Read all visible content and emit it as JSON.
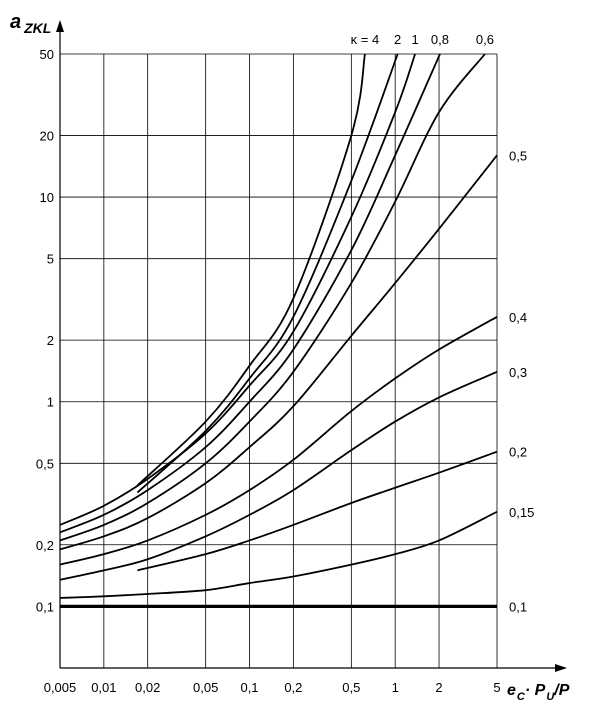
{
  "chart_data": {
    "type": "line",
    "y_label": {
      "main": "a",
      "sub": "ZKL"
    },
    "x_label": [
      "e",
      "C",
      "· P",
      "U",
      "/P"
    ],
    "log_x": true,
    "log_y": true,
    "grid": true,
    "xlim": [
      0.005,
      5
    ],
    "ylim": [
      0.05,
      50
    ],
    "xticks": [
      {
        "value": 0.005,
        "label": "0,005"
      },
      {
        "value": 0.01,
        "label": "0,01"
      },
      {
        "value": 0.02,
        "label": "0,02"
      },
      {
        "value": 0.05,
        "label": "0,05"
      },
      {
        "value": 0.1,
        "label": "0,1"
      },
      {
        "value": 0.2,
        "label": "0,2"
      },
      {
        "value": 0.5,
        "label": "0,5"
      },
      1,
      2,
      5
    ],
    "yticks": [
      {
        "value": 0.1,
        "label": "0,1"
      },
      {
        "value": 0.2,
        "label": "0,2"
      },
      {
        "value": 0.5,
        "label": "0,5"
      },
      1,
      2,
      5,
      10,
      20,
      50
    ],
    "series": [
      {
        "name": "κ = 4",
        "color": "#000000",
        "width": 1.8,
        "x": [
          0.017,
          0.05,
          0.1,
          0.2,
          0.5,
          0.62
        ],
        "values": [
          0.39,
          0.8,
          1.5,
          3.2,
          20,
          50
        ]
      },
      {
        "name": "2",
        "color": "#000000",
        "width": 1.8,
        "x": [
          0.017,
          0.05,
          0.1,
          0.2,
          0.5,
          1.04
        ],
        "values": [
          0.36,
          0.72,
          1.3,
          2.6,
          12,
          50
        ]
      },
      {
        "name": "1",
        "color": "#000000",
        "width": 1.8,
        "x": [
          0.005,
          0.01,
          0.02,
          0.05,
          0.1,
          0.2,
          0.5,
          1,
          1.37
        ],
        "values": [
          0.25,
          0.31,
          0.42,
          0.7,
          1.2,
          2.2,
          8,
          26,
          50
        ]
      },
      {
        "name": "0,8",
        "color": "#000000",
        "width": 1.8,
        "x": [
          0.005,
          0.01,
          0.02,
          0.05,
          0.1,
          0.2,
          0.5,
          1,
          2.03
        ],
        "values": [
          0.23,
          0.28,
          0.37,
          0.6,
          1.0,
          1.8,
          5.5,
          16,
          50
        ]
      },
      {
        "name": "0,6",
        "color": "#000000",
        "width": 1.8,
        "x": [
          0.005,
          0.01,
          0.02,
          0.05,
          0.1,
          0.2,
          0.5,
          1,
          2,
          4.13
        ],
        "values": [
          0.21,
          0.25,
          0.32,
          0.5,
          0.8,
          1.4,
          3.8,
          9.5,
          26,
          50
        ]
      },
      {
        "name": "0,5",
        "color": "#000000",
        "width": 1.8,
        "x": [
          0.005,
          0.01,
          0.02,
          0.05,
          0.1,
          0.2,
          0.5,
          1,
          2,
          5
        ],
        "values": [
          0.19,
          0.22,
          0.27,
          0.4,
          0.6,
          0.95,
          2.1,
          3.8,
          7,
          16
        ]
      },
      {
        "name": "0,4",
        "color": "#000000",
        "width": 1.8,
        "x": [
          0.005,
          0.01,
          0.02,
          0.05,
          0.1,
          0.2,
          0.5,
          1,
          2,
          5
        ],
        "values": [
          0.16,
          0.18,
          0.21,
          0.28,
          0.37,
          0.52,
          0.9,
          1.3,
          1.8,
          2.6
        ]
      },
      {
        "name": "0,3",
        "color": "#000000",
        "width": 1.8,
        "x": [
          0.005,
          0.01,
          0.02,
          0.05,
          0.1,
          0.2,
          0.5,
          1,
          2,
          5
        ],
        "values": [
          0.135,
          0.15,
          0.17,
          0.22,
          0.28,
          0.37,
          0.58,
          0.8,
          1.05,
          1.4
        ]
      },
      {
        "name": "0,2",
        "color": "#000000",
        "width": 1.8,
        "x": [
          0.017,
          0.05,
          0.1,
          0.2,
          0.5,
          1,
          2,
          5
        ],
        "values": [
          0.15,
          0.18,
          0.21,
          0.25,
          0.32,
          0.38,
          0.45,
          0.57
        ]
      },
      {
        "name": "0,15",
        "color": "#000000",
        "width": 1.8,
        "x": [
          0.005,
          0.01,
          0.02,
          0.05,
          0.1,
          0.2,
          0.5,
          1,
          2,
          5
        ],
        "values": [
          0.11,
          0.112,
          0.115,
          0.12,
          0.13,
          0.14,
          0.16,
          0.18,
          0.21,
          0.29
        ]
      },
      {
        "name": "0,1",
        "color": "#000000",
        "width": 3.2,
        "x": [
          0.005,
          5
        ],
        "values": [
          0.1,
          0.1
        ]
      }
    ]
  }
}
